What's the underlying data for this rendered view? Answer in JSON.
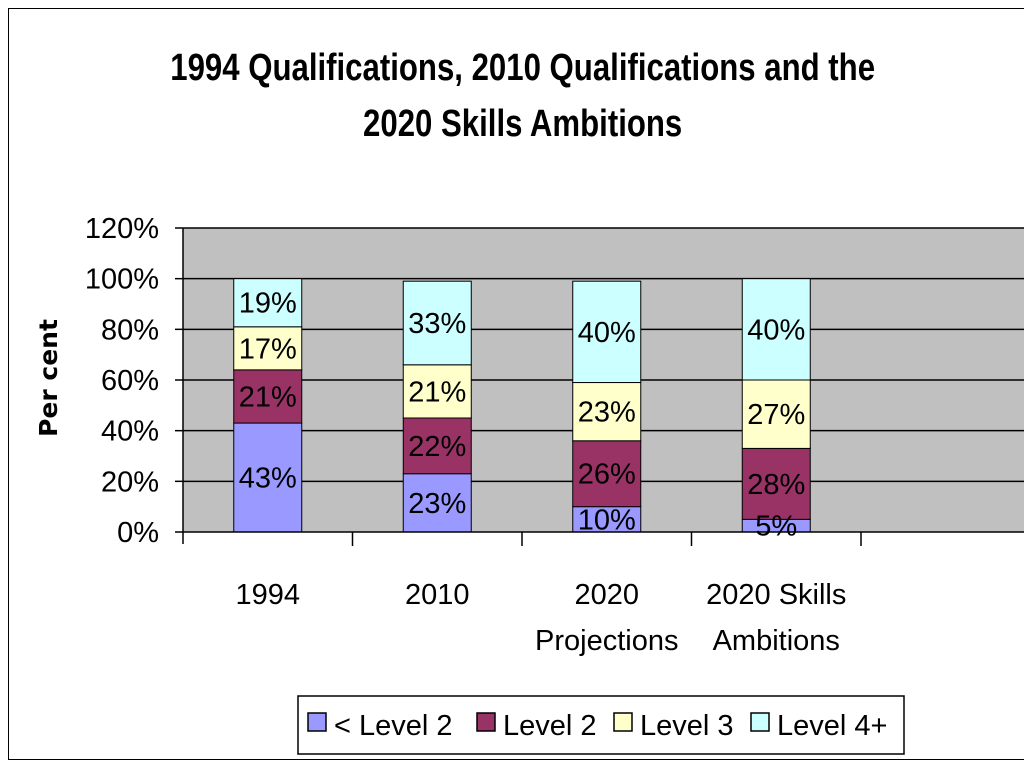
{
  "chart_data": {
    "type": "bar",
    "stacked": true,
    "title_lines": [
      "1994 Qualifications, 2010 Qualifications and the",
      "2020 Skills Ambitions"
    ],
    "ylabel": "Per cent",
    "xlabel": "",
    "ylim": [
      0,
      120
    ],
    "yticks": [
      "0%",
      "20%",
      "40%",
      "60%",
      "80%",
      "100%",
      "120%"
    ],
    "categories": [
      [
        "1994"
      ],
      [
        "2010"
      ],
      [
        "2020",
        "Projections"
      ],
      [
        "2020 Skills",
        "Ambitions"
      ]
    ],
    "series": [
      {
        "name": "< Level 2",
        "color": "#9999ff",
        "values": [
          43,
          23,
          10,
          5
        ],
        "labels": [
          "43%",
          "23%",
          "10%",
          "5%"
        ]
      },
      {
        "name": "Level 2",
        "color": "#993366",
        "values": [
          21,
          22,
          26,
          28
        ],
        "labels": [
          "21%",
          "22%",
          "26%",
          "28%"
        ]
      },
      {
        "name": "Level 3",
        "color": "#ffffcc",
        "values": [
          17,
          21,
          23,
          27
        ],
        "labels": [
          "17%",
          "21%",
          "23%",
          "27%"
        ]
      },
      {
        "name": "Level 4+",
        "color": "#ccffff",
        "values": [
          19,
          33,
          40,
          40
        ],
        "labels": [
          "19%",
          "33%",
          "40%",
          "40%"
        ]
      }
    ],
    "plot_background": "#c0c0c0",
    "grid": true,
    "legend_position": "bottom"
  }
}
